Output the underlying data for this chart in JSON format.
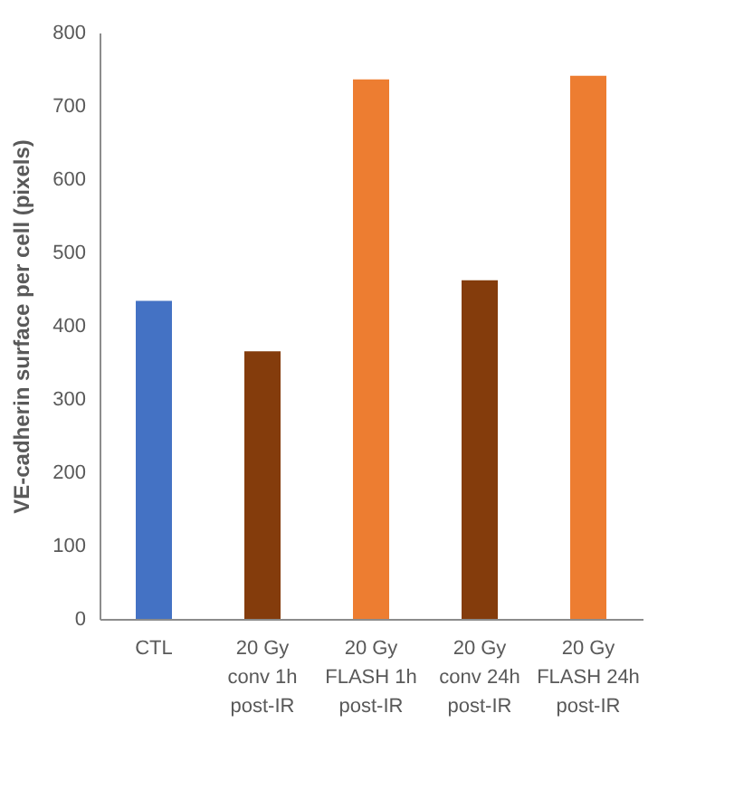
{
  "chart_data": {
    "type": "bar",
    "ylabel": "VE-cadherin surface per cell (pixels)",
    "categories": [
      "CTL",
      "20 Gy conv 1h post-IR",
      "20 Gy FLASH 1h post-IR",
      "20 Gy conv 24h post-IR",
      "20 Gy FLASH 24h post-IR"
    ],
    "values": [
      434,
      365,
      736,
      462,
      741
    ],
    "colors": [
      "#4472c4",
      "#843c0c",
      "#ed7d31",
      "#843c0c",
      "#ed7d31"
    ],
    "ylim": [
      0,
      800
    ],
    "yticks": [
      0,
      100,
      200,
      300,
      400,
      500,
      600,
      700,
      800
    ],
    "grid": false
  }
}
